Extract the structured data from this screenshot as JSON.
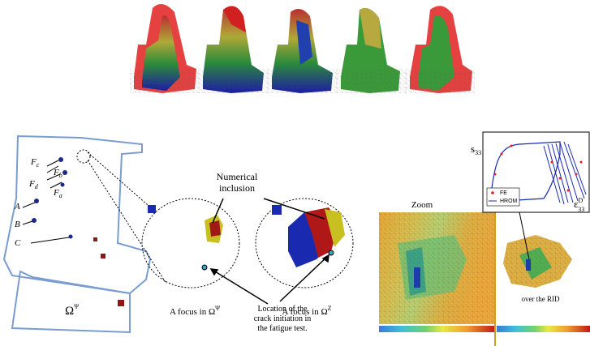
{
  "labels": {
    "forces": [
      {
        "base": "F",
        "sub": "c"
      },
      {
        "base": "F",
        "sub": "b"
      },
      {
        "base": "F",
        "sub": "d"
      },
      {
        "base": "F",
        "sub": "a"
      }
    ],
    "points": [
      "A",
      "B",
      "C"
    ],
    "omega_psi": {
      "base": "Ω",
      "sup": "Ψ"
    }
  },
  "callouts": {
    "numerical_inclusion": [
      "Numerical",
      "inclusion"
    ],
    "focus_psi": {
      "text": "A focus in Ω",
      "sup": "Ψ"
    },
    "focus_z": {
      "text": "A focus in Ω",
      "sup": "Z"
    },
    "crack": [
      "Location of the",
      "crack initiation in",
      "the fatigue test."
    ]
  },
  "zoom": "Zoom",
  "rid": "over the RID",
  "plot": {
    "ylabel": {
      "base": "s",
      "sub": "33"
    },
    "xlabel": {
      "base": "ε",
      "sup": "D",
      "sub": "33"
    },
    "legend": [
      "FE",
      "HROM"
    ]
  }
}
